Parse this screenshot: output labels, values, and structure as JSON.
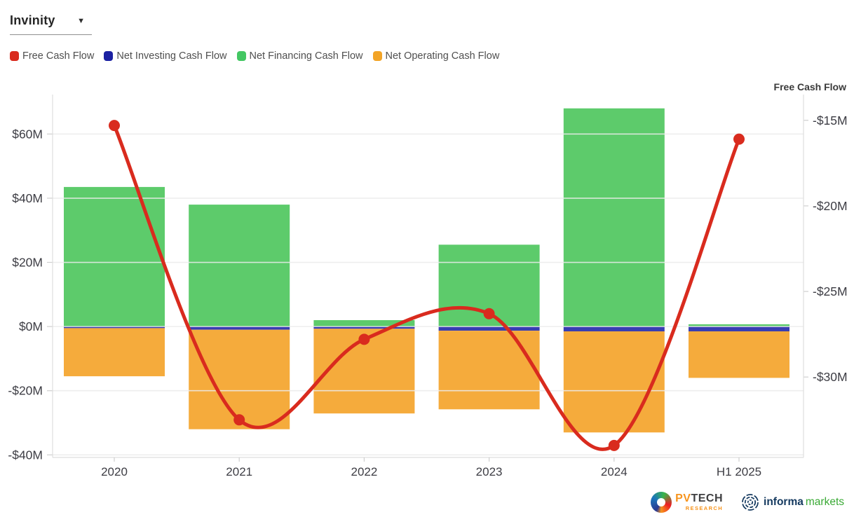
{
  "dropdown": {
    "value": "Invinity"
  },
  "legend": [
    {
      "key": "fcf",
      "label": "Free Cash Flow",
      "color": "#d92b1e"
    },
    {
      "key": "investing",
      "label": "Net Investing Cash Flow",
      "color": "#1b21a2"
    },
    {
      "key": "financing",
      "label": "Net Financing Cash Flow",
      "color": "#44c763"
    },
    {
      "key": "operating",
      "label": "Net Operating Cash Flow",
      "color": "#f2a427"
    }
  ],
  "chart_data": {
    "type": "bar",
    "subtype": "stacked-bars-with-line",
    "categories": [
      "2020",
      "2021",
      "2022",
      "2023",
      "2024",
      "H1 2025"
    ],
    "bar_series": [
      {
        "key": "financing",
        "name": "Net Financing Cash Flow",
        "color": "#5dcb6b",
        "values": [
          43.5,
          38,
          2,
          25.5,
          68,
          0.7
        ]
      },
      {
        "key": "investing",
        "name": "Net Investing Cash Flow",
        "color": "#383eb2",
        "values": [
          -0.5,
          -1,
          -0.7,
          -1.3,
          -1.5,
          -1.5
        ]
      },
      {
        "key": "operating",
        "name": "Net Operating Cash Flow",
        "color": "#f5ab3c",
        "values": [
          -15,
          -31,
          -26.4,
          -24.5,
          -31.5,
          -14.5
        ]
      }
    ],
    "line_series": {
      "key": "fcf",
      "name": "Free Cash Flow",
      "color": "#d92b1e",
      "axis": "right",
      "values": [
        -15.3,
        -32.5,
        -27.8,
        -26.3,
        -34,
        -16.1
      ]
    },
    "left_axis": {
      "unit": "$M",
      "ticks": [
        "$60M",
        "$40M",
        "$20M",
        "$0M",
        "-$20M",
        "-$40M"
      ],
      "tick_values": [
        60,
        40,
        20,
        0,
        -20,
        -40
      ],
      "range": [
        -40.8,
        71.2
      ],
      "grid": true
    },
    "right_axis": {
      "title": "Free Cash Flow",
      "ticks": [
        "-$15M",
        "-$20M",
        "-$25M",
        "-$30M"
      ],
      "tick_values": [
        -15,
        -20,
        -25,
        -30
      ],
      "range": [
        -34.7,
        -13.7
      ]
    }
  },
  "branding": {
    "pvtech": {
      "pv": "PV",
      "tech": "TECH",
      "research": "RESEARCH"
    },
    "informa": {
      "name": "informa",
      "suffix": "markets"
    }
  }
}
